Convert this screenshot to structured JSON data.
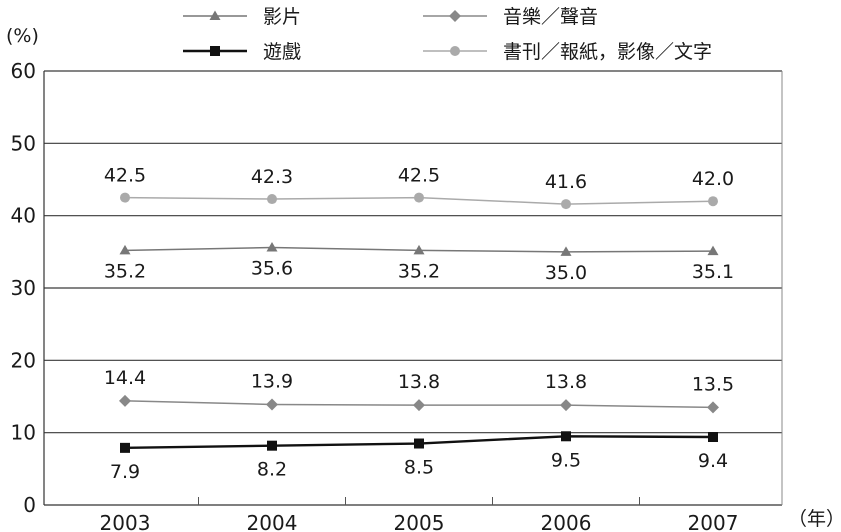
{
  "chart_data": {
    "type": "line",
    "ylabel": "(%)",
    "xunit": "（年）",
    "x": [
      "2003",
      "2004",
      "2005",
      "2006",
      "2007"
    ],
    "y_ticks": [
      "0",
      "10",
      "20",
      "30",
      "40",
      "50",
      "60"
    ],
    "ylim": [
      0,
      60
    ],
    "grid": true,
    "legend_position": "top",
    "series": [
      {
        "name": "影片",
        "marker": "triangle",
        "color": "#777777",
        "values": [
          35.2,
          35.6,
          35.2,
          35.0,
          35.1
        ],
        "labels": [
          "35.2",
          "35.6",
          "35.2",
          "35.0",
          "35.1"
        ]
      },
      {
        "name": "音樂／聲音",
        "marker": "diamond",
        "color": "#888888",
        "values": [
          14.4,
          13.9,
          13.8,
          13.8,
          13.5
        ],
        "labels": [
          "14.4",
          "13.9",
          "13.8",
          "13.8",
          "13.5"
        ]
      },
      {
        "name": "遊戲",
        "marker": "square",
        "color": "#111111",
        "values": [
          7.9,
          8.2,
          8.5,
          9.5,
          9.4
        ],
        "labels": [
          "7.9",
          "8.2",
          "8.5",
          "9.5",
          "9.4"
        ]
      },
      {
        "name": "書刊／報紙，影像／文字",
        "marker": "circle",
        "color": "#aaaaaa",
        "values": [
          42.5,
          42.3,
          42.5,
          41.6,
          42.0
        ],
        "labels": [
          "42.5",
          "42.3",
          "42.5",
          "41.6",
          "42.0"
        ]
      }
    ]
  }
}
